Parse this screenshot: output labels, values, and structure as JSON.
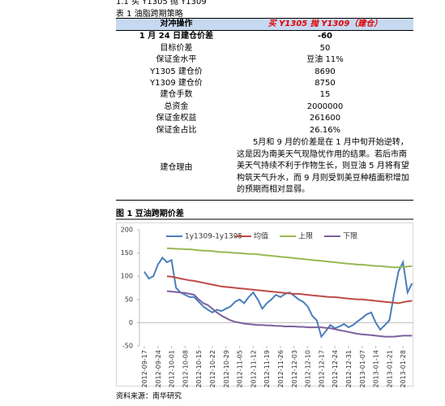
{
  "heading": "1.1 买 Y1305 抛 Y1309",
  "table": {
    "caption": "表 1 油脂跨期策略",
    "header": [
      "对冲操作",
      "买 Y1305 抛 Y1309（建仓）"
    ],
    "rows": [
      [
        "1 月 24 日建仓价差",
        "-60"
      ],
      [
        "目标价差",
        "50"
      ],
      [
        "保证金水平",
        "豆油 11%"
      ],
      [
        "Y1305 建仓价",
        "8690"
      ],
      [
        "Y1309 建仓价",
        "8750"
      ],
      [
        "建仓手数",
        "15"
      ],
      [
        "总资金",
        "2000000"
      ],
      [
        "保证金权益",
        "261600"
      ],
      [
        "保证金占比",
        "26.16%"
      ],
      [
        "建仓理由",
        "5月和 9 月的价差是在 1 月中旬开始逆转，这是因为南美天气现隐忧作用的结果。若后市南美天气持续不利于作物生长，则豆油 5 月将有望构筑天气升水，而 9 月则受到美豆种植面积增加的预期而相对显弱。"
      ]
    ]
  },
  "chart_data": {
    "type": "line",
    "title": "图 1 豆油跨期价差",
    "categories": [
      "2012-09-17",
      null,
      null,
      "2012-09-24",
      null,
      null,
      "2012-10-01",
      null,
      null,
      "2012-10-08",
      null,
      null,
      "2012-10-15",
      null,
      null,
      "2012-10-22",
      null,
      null,
      "2012-10-29",
      null,
      null,
      "2012-11-05",
      null,
      null,
      "2012-11-12",
      null,
      null,
      "2012-11-19",
      null,
      null,
      "2012-11-26",
      null,
      null,
      "2012-12-03",
      null,
      null,
      "2012-12-10",
      null,
      null,
      "2012-12-17",
      null,
      null,
      "2012-12-24",
      null,
      null,
      "2012-12-31",
      null,
      null,
      "2013-01-07",
      null,
      null,
      "2013-01-14",
      null,
      null,
      "2013-01-21",
      null,
      null,
      "2013-01-28",
      null,
      null
    ],
    "series": [
      {
        "name": "1y1309-1y1305",
        "color": "#4a7ebb",
        "values": [
          110,
          95,
          100,
          125,
          140,
          130,
          135,
          75,
          65,
          60,
          55,
          55,
          45,
          35,
          28,
          22,
          28,
          25,
          30,
          35,
          45,
          50,
          42,
          55,
          65,
          50,
          30,
          42,
          50,
          60,
          55,
          62,
          65,
          58,
          50,
          45,
          35,
          15,
          5,
          -30,
          -18,
          -5,
          -12,
          -8,
          -3,
          -10,
          -5,
          3,
          10,
          18,
          22,
          0,
          -15,
          -5,
          5,
          60,
          110,
          130,
          65,
          85
        ]
      },
      {
        "name": "均值",
        "color": "#be4b48",
        "values": [
          null,
          null,
          null,
          null,
          null,
          100,
          99,
          97,
          95,
          93,
          91,
          90,
          88,
          86,
          84,
          82,
          80,
          78,
          77,
          76,
          75,
          74,
          73,
          72,
          71,
          70,
          69,
          68,
          67,
          66,
          65,
          64,
          63,
          62,
          62,
          61,
          60,
          59,
          58,
          57,
          56,
          55,
          55,
          54,
          53,
          52,
          51,
          50,
          50,
          49,
          48,
          47,
          46,
          45,
          44,
          43,
          42,
          44,
          46,
          47
        ]
      },
      {
        "name": "上限",
        "color": "#98b954",
        "values": [
          null,
          null,
          null,
          null,
          null,
          160,
          160,
          159,
          159,
          158,
          158,
          157,
          156,
          155,
          155,
          154,
          153,
          152,
          152,
          151,
          150,
          150,
          149,
          148,
          148,
          147,
          146,
          145,
          144,
          143,
          142,
          141,
          140,
          139,
          138,
          137,
          136,
          135,
          134,
          133,
          132,
          131,
          130,
          129,
          128,
          127,
          126,
          125,
          125,
          124,
          123,
          122,
          122,
          121,
          120,
          119,
          119,
          120,
          121,
          122
        ]
      },
      {
        "name": "下限",
        "color": "#7d60a0",
        "values": [
          null,
          null,
          null,
          null,
          null,
          68,
          67,
          66,
          65,
          64,
          62,
          60,
          50,
          42,
          38,
          30,
          22,
          15,
          10,
          5,
          2,
          0,
          -2,
          -3,
          -4,
          -5,
          -5,
          -6,
          -6,
          -7,
          -7,
          -8,
          -8,
          -8,
          -9,
          -9,
          -10,
          -10,
          -10,
          -10,
          -11,
          -12,
          -14,
          -16,
          -18,
          -20,
          -22,
          -24,
          -25,
          -26,
          -27,
          -28,
          -29,
          -30,
          -30,
          -30,
          -29,
          -28,
          -28,
          -28
        ]
      }
    ],
    "ylim": [
      -50,
      200
    ],
    "yticks": [
      -50,
      0,
      50,
      100,
      150,
      200
    ],
    "legend": "top"
  },
  "source": "资料来源：南华研究"
}
